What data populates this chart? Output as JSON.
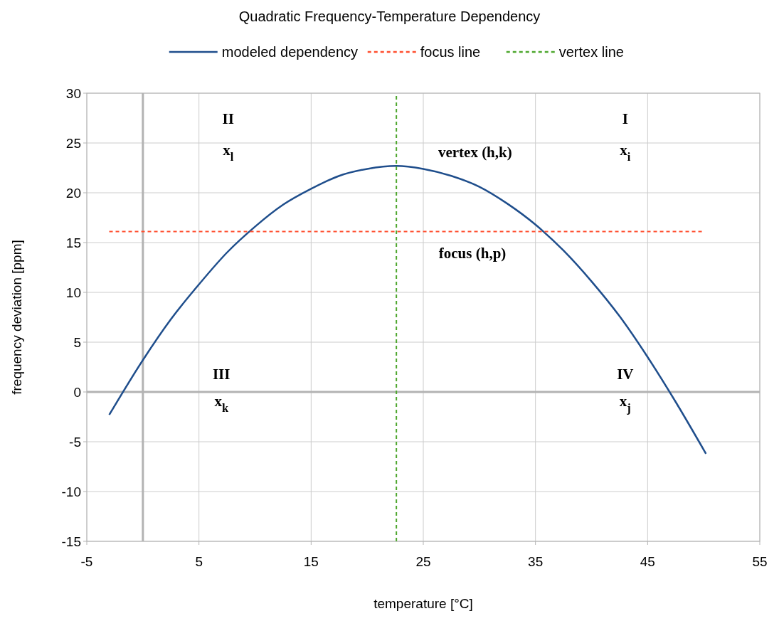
{
  "chart_data": {
    "type": "line",
    "title": "Quadratic Frequency-Temperature Dependency",
    "xlabel": "temperature [°C]",
    "ylabel": "frequency deviation [ppm]",
    "xlim": [
      -5,
      55
    ],
    "xticks": [
      -5,
      5,
      15,
      25,
      35,
      45,
      55
    ],
    "ylim": [
      -15,
      30
    ],
    "yticks": [
      -15,
      -10,
      -5,
      0,
      5,
      10,
      15,
      20,
      25,
      30
    ],
    "grid": true,
    "legend": "top",
    "marker": "none",
    "series": [
      {
        "name": "modeled dependency",
        "color": "#1f4e8c",
        "line_style": "solid",
        "x": [
          -3,
          0,
          2.5,
          5,
          7.5,
          10,
          12.5,
          15,
          17.5,
          20,
          22.6,
          25,
          27.5,
          30,
          32.5,
          35,
          37.5,
          40,
          42.5,
          45,
          47.5,
          50.2
        ],
        "values": [
          -2.3,
          3.2,
          7.3,
          10.8,
          14.0,
          16.6,
          18.8,
          20.4,
          21.7,
          22.4,
          22.7,
          22.4,
          21.7,
          20.6,
          18.9,
          16.8,
          14.2,
          11.1,
          7.6,
          3.5,
          -1.0,
          -6.2
        ]
      },
      {
        "name": "focus line",
        "color": "#ff4f2f",
        "line_style": "dashed",
        "x": [
          -3,
          49.9
        ],
        "values": [
          16.1,
          16.1
        ]
      },
      {
        "name": "vertex line",
        "color": "#4ea72e",
        "line_style": "dashed",
        "x": [
          22.6,
          22.6
        ],
        "values": [
          -15,
          30
        ]
      }
    ],
    "annotations": [
      "II",
      "x$_{l}$",
      "I",
      "x$_{i}$",
      "III",
      "x$_{k}$",
      "IV",
      "x$_{j}$",
      "vertex (h,k)",
      "focus (h,p)"
    ]
  }
}
